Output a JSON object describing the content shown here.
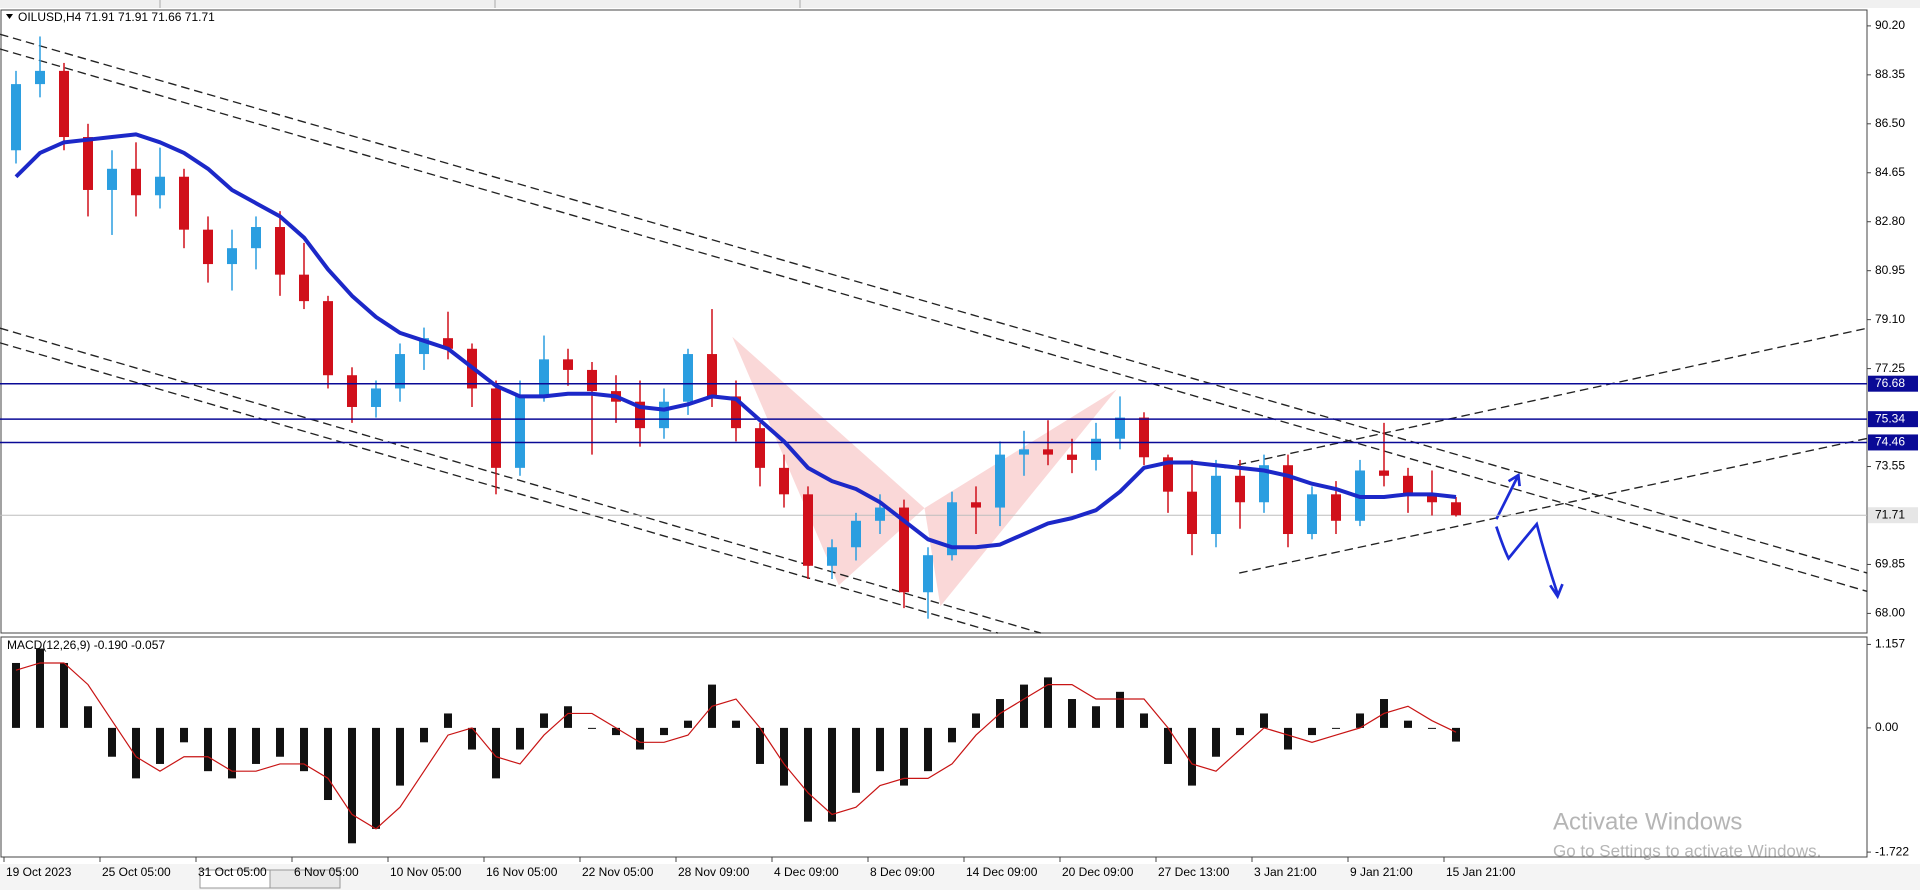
{
  "chart_data": [
    {
      "type": "candlestick",
      "title": "OILUSD,H4  71.91 71.91 71.66 71.71",
      "categories": [
        "19 Oct 2023",
        null,
        null,
        null,
        "25 Oct 05:00",
        null,
        null,
        null,
        "31 Oct 05:00",
        null,
        null,
        null,
        "6 Nov 05:00",
        null,
        null,
        null,
        "10 Nov 05:00",
        null,
        null,
        null,
        "16 Nov 05:00",
        null,
        null,
        null,
        "22 Nov 05:00",
        null,
        null,
        null,
        "28 Nov 09:00",
        null,
        null,
        null,
        "4 Dec 09:00",
        null,
        null,
        null,
        "8 Dec 09:00",
        null,
        null,
        null,
        "14 Dec 09:00",
        null,
        null,
        null,
        "20 Dec 09:00",
        null,
        null,
        null,
        "27 Dec 13:00",
        null,
        null,
        null,
        "3 Jan 21:00",
        null,
        null,
        null,
        "9 Jan 21:00",
        null,
        null,
        null,
        "15 Jan 21:00"
      ],
      "ohlc": [
        [
          85.5,
          88.5,
          85,
          88
        ],
        [
          88,
          89.8,
          87.5,
          88.5
        ],
        [
          88.5,
          88.8,
          85.5,
          86
        ],
        [
          86,
          86.5,
          83,
          84
        ],
        [
          84,
          85.5,
          82.3,
          84.8
        ],
        [
          84.8,
          85.8,
          83,
          83.8
        ],
        [
          83.8,
          85.6,
          83.3,
          84.5
        ],
        [
          84.5,
          84.8,
          81.8,
          82.5
        ],
        [
          82.5,
          83,
          80.5,
          81.2
        ],
        [
          81.2,
          82.5,
          80.2,
          81.8
        ],
        [
          81.8,
          83,
          81,
          82.6
        ],
        [
          82.6,
          83.2,
          80,
          80.8
        ],
        [
          80.8,
          82,
          79.5,
          79.8
        ],
        [
          79.8,
          80,
          76.5,
          77
        ],
        [
          77,
          77.3,
          75.2,
          75.8
        ],
        [
          75.8,
          76.8,
          75.4,
          76.5
        ],
        [
          76.5,
          78.2,
          76,
          77.8
        ],
        [
          77.8,
          78.8,
          77.2,
          78.4
        ],
        [
          78.4,
          79.4,
          77.6,
          78
        ],
        [
          78,
          78.2,
          75.8,
          76.5
        ],
        [
          76.5,
          76.8,
          72.5,
          73.5
        ],
        [
          73.5,
          76.8,
          73.2,
          76.2
        ],
        [
          76.2,
          78.5,
          76,
          77.6
        ],
        [
          77.6,
          78,
          76.6,
          77.2
        ],
        [
          77.2,
          77.5,
          74,
          76.4
        ],
        [
          76.4,
          77,
          75.2,
          76
        ],
        [
          76,
          76.8,
          74.3,
          75
        ],
        [
          75,
          76.5,
          74.6,
          76
        ],
        [
          76,
          78,
          75.5,
          77.8
        ],
        [
          77.8,
          79.5,
          75.8,
          76.2
        ],
        [
          76.2,
          76.8,
          74.5,
          75
        ],
        [
          75,
          75.2,
          72.8,
          73.5
        ],
        [
          73.5,
          74,
          72,
          72.5
        ],
        [
          72.5,
          72.8,
          69.3,
          69.8
        ],
        [
          69.8,
          70.8,
          69.3,
          70.5
        ],
        [
          70.5,
          71.8,
          70,
          71.5
        ],
        [
          71.5,
          72.5,
          71,
          72
        ],
        [
          72,
          72.3,
          68.2,
          68.8
        ],
        [
          68.8,
          70.5,
          67.8,
          70.2
        ],
        [
          70.2,
          72.6,
          70,
          72.2
        ],
        [
          72.2,
          72.8,
          71,
          72
        ],
        [
          72,
          74.5,
          71.3,
          74
        ],
        [
          74,
          74.9,
          73.2,
          74.2
        ],
        [
          74.2,
          75.3,
          73.6,
          74
        ],
        [
          74,
          74.6,
          73.3,
          73.8
        ],
        [
          73.8,
          75.2,
          73.4,
          74.6
        ],
        [
          74.6,
          76.2,
          74.2,
          75.4
        ],
        [
          75.4,
          75.6,
          73.6,
          73.9
        ],
        [
          73.9,
          74,
          71.8,
          72.6
        ],
        [
          72.6,
          73.8,
          70.2,
          71
        ],
        [
          71,
          73.8,
          70.5,
          73.2
        ],
        [
          73.2,
          73.8,
          71.2,
          72.2
        ],
        [
          72.2,
          74,
          71.8,
          73.6
        ],
        [
          73.6,
          74,
          70.5,
          71
        ],
        [
          71,
          72.8,
          70.8,
          72.5
        ],
        [
          72.5,
          73,
          71,
          71.5
        ],
        [
          71.5,
          73.8,
          71.3,
          73.4
        ],
        [
          73.4,
          75.2,
          72.8,
          73.2
        ],
        [
          73.2,
          73.5,
          71.8,
          72.5
        ],
        [
          72.5,
          73.4,
          71.7,
          72.2
        ],
        [
          72.2,
          72.4,
          71.66,
          71.71
        ]
      ],
      "up_color": "#2b9ee0",
      "down_color": "#d0101b",
      "ma": {
        "color": "#1c28c8",
        "values": [
          84.5,
          85.4,
          85.8,
          85.9,
          86,
          86.1,
          85.8,
          85.4,
          84.8,
          84,
          83.5,
          83,
          82.2,
          81,
          80,
          79.2,
          78.6,
          78.3,
          78,
          77.3,
          76.6,
          76.2,
          76.2,
          76.3,
          76.3,
          76.2,
          75.8,
          75.7,
          75.9,
          76.2,
          76.1,
          75.3,
          74.5,
          73.5,
          73,
          72.7,
          72.2,
          71.5,
          70.8,
          70.5,
          70.5,
          70.6,
          71,
          71.4,
          71.6,
          71.9,
          72.6,
          73.5,
          73.7,
          73.7,
          73.6,
          73.5,
          73.4,
          73.2,
          72.9,
          72.7,
          72.4,
          72.4,
          72.5,
          72.5,
          72.4
        ]
      },
      "levels": [
        {
          "value": 76.68,
          "color": "#0a0a96"
        },
        {
          "value": 75.34,
          "color": "#0a0a96"
        },
        {
          "value": 74.46,
          "color": "#0a0a96"
        }
      ],
      "last": 71.71,
      "ylim": [
        67.26,
        90.8
      ],
      "yticks": [
        {
          "value": 90.2,
          "label": "90.20"
        },
        88.35,
        {
          "value": 86.5,
          "label": "86.50"
        },
        84.65,
        {
          "value": 82.8,
          "label": "82.80"
        },
        80.95,
        {
          "value": 79.1,
          "label": "79.10"
        },
        77.25,
        73.55,
        69.85,
        {
          "value": 68,
          "label": "68.00"
        }
      ]
    },
    {
      "type": "macd",
      "title": "MACD(12,26,9) -0.190 -0.057",
      "histogram": [
        0.9,
        1.1,
        0.9,
        0.3,
        -0.4,
        -0.7,
        -0.5,
        -0.2,
        -0.6,
        -0.7,
        -0.5,
        -0.4,
        -0.6,
        -1,
        -1.6,
        -1.4,
        -0.8,
        -0.2,
        0.2,
        -0.3,
        -0.7,
        -0.3,
        0.2,
        0.3,
        0,
        -0.1,
        -0.3,
        -0.1,
        0.1,
        0.6,
        0.1,
        -0.5,
        -0.8,
        -1.3,
        -1.3,
        -0.9,
        -0.6,
        -0.8,
        -0.6,
        -0.2,
        0.2,
        0.4,
        0.6,
        0.7,
        0.4,
        0.3,
        0.5,
        0.2,
        -0.5,
        -0.8,
        -0.4,
        -0.1,
        0.2,
        -0.3,
        -0.1,
        0,
        0.2,
        0.4,
        0.1,
        0,
        -0.19
      ],
      "signal": {
        "color": "#c81414",
        "values": [
          0.8,
          0.9,
          0.9,
          0.6,
          0.1,
          -0.4,
          -0.6,
          -0.4,
          -0.4,
          -0.6,
          -0.6,
          -0.5,
          -0.5,
          -0.7,
          -1.2,
          -1.4,
          -1.1,
          -0.6,
          -0.1,
          0,
          -0.4,
          -0.5,
          -0.1,
          0.2,
          0.2,
          0,
          -0.2,
          -0.2,
          -0.1,
          0.3,
          0.4,
          0,
          -0.5,
          -0.9,
          -1.2,
          -1.1,
          -0.8,
          -0.7,
          -0.7,
          -0.5,
          -0.1,
          0.2,
          0.4,
          0.6,
          0.6,
          0.4,
          0.4,
          0.4,
          0,
          -0.5,
          -0.6,
          -0.3,
          0,
          -0.1,
          -0.2,
          -0.1,
          0,
          0.2,
          0.3,
          0.1,
          -0.06
        ]
      },
      "ylim": [
        -1.79,
        1.26
      ],
      "yticks": [
        1.157,
        {
          "value": 0,
          "label": "0.00"
        },
        -1.722
      ]
    }
  ],
  "watermark": {
    "title": "Activate Windows",
    "subtitle": "Go to Settings to activate Windows."
  }
}
